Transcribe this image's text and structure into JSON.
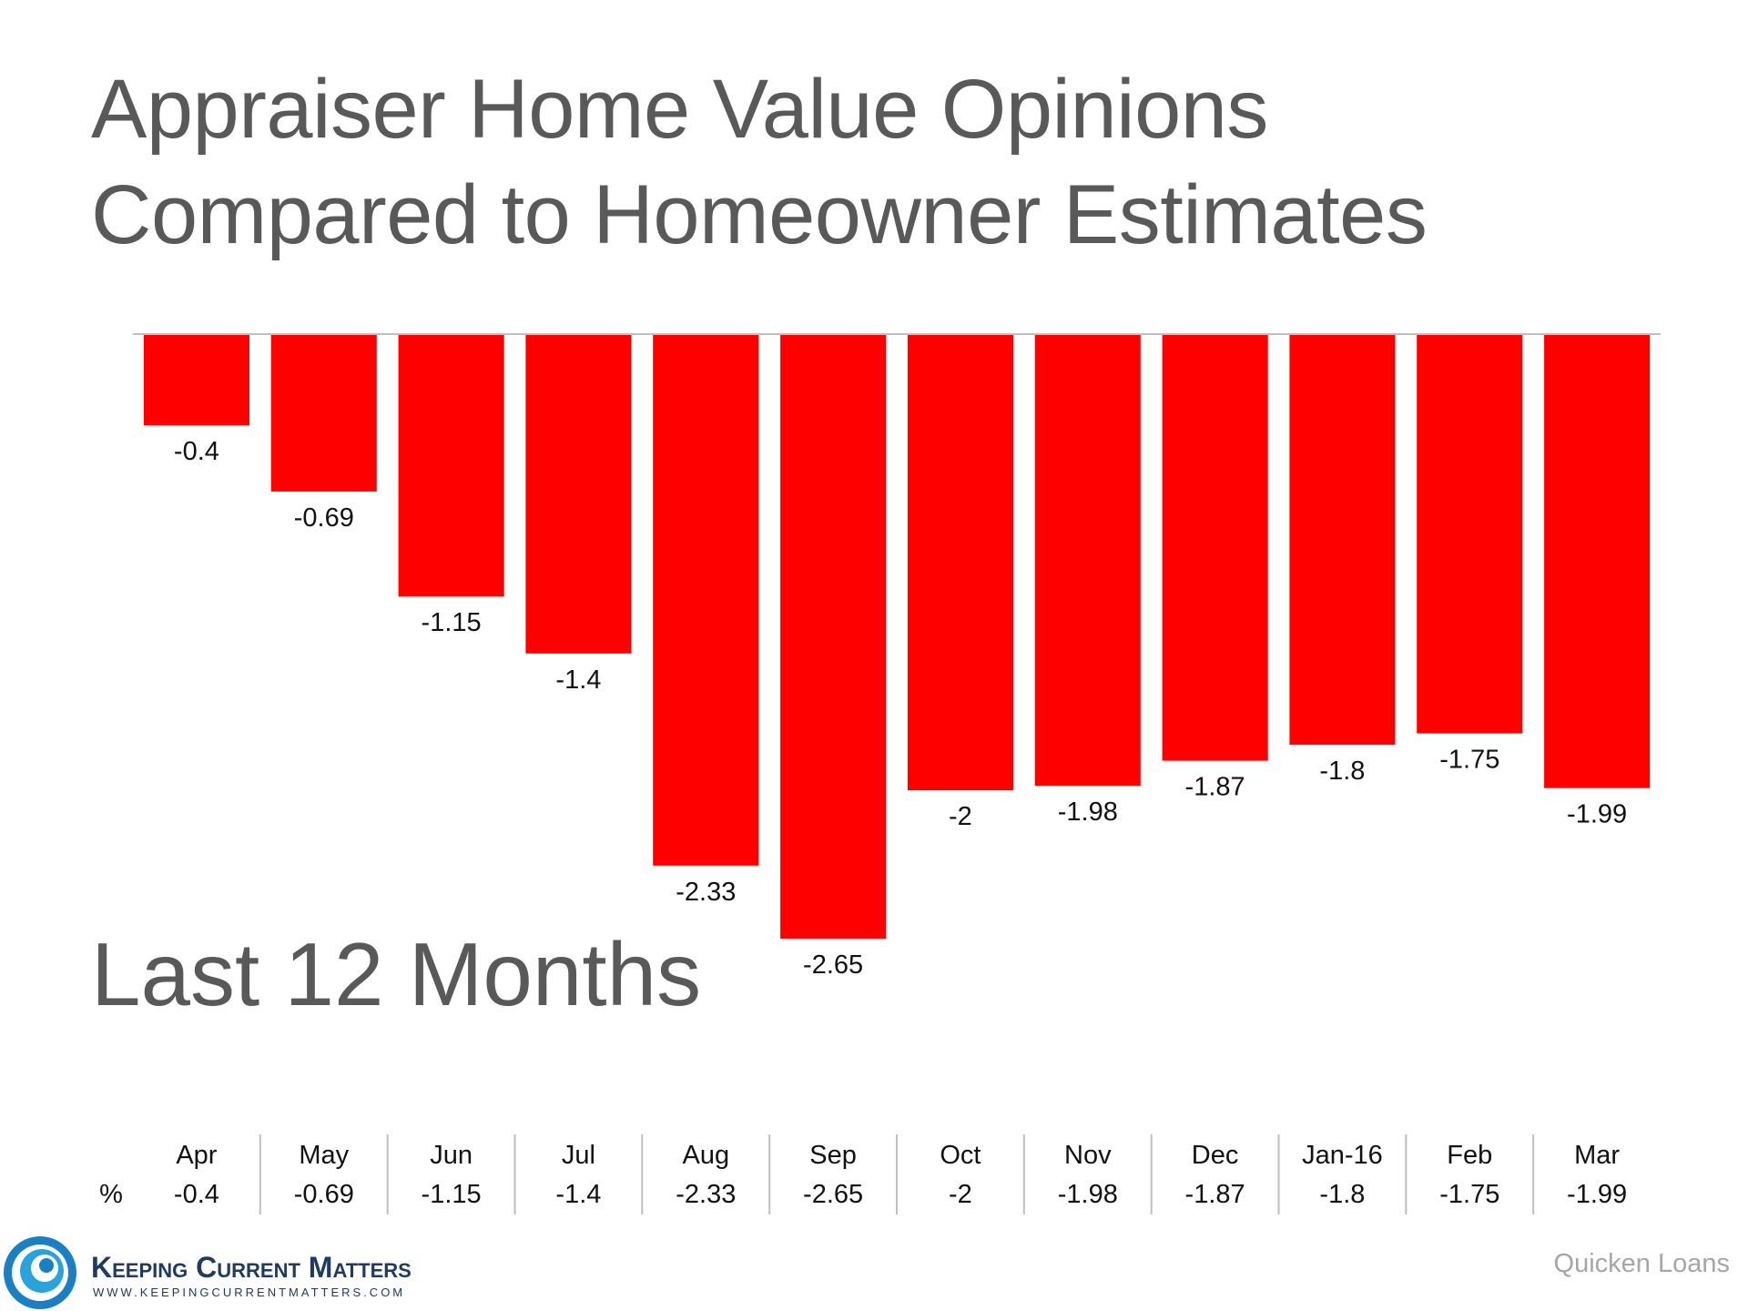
{
  "title_lines": [
    "Appraiser Home Value Opinions",
    "Compared to Homeowner Estimates"
  ],
  "subtitle": "Last 12 Months",
  "colors": {
    "bar": "#ff0000",
    "text": "#595959",
    "axis": "#bfbfbf",
    "brand": "#1f3b63"
  },
  "chart_data": {
    "type": "bar",
    "title": "Appraiser Home Value Opinions Compared to Homeowner Estimates",
    "subtitle": "Last 12 Months",
    "categories": [
      "Apr",
      "May",
      "Jun",
      "Jul",
      "Aug",
      "Sep",
      "Oct",
      "Nov",
      "Dec",
      "Jan-16",
      "Feb",
      "Mar"
    ],
    "values": [
      -0.4,
      -0.69,
      -1.15,
      -1.4,
      -2.33,
      -2.65,
      -2,
      -1.98,
      -1.87,
      -1.8,
      -1.75,
      -1.99
    ],
    "value_labels": [
      "-0.4",
      "-0.69",
      "-1.15",
      "-1.4",
      "-2.33",
      "-2.65",
      "-2",
      "-1.98",
      "-1.87",
      "-1.8",
      "-1.75",
      "-1.99"
    ],
    "ylim": [
      -2.65,
      0
    ],
    "grid": false,
    "data_table": {
      "row_label": "%"
    }
  },
  "logo": {
    "name": "Keeping Current Matters",
    "url": "WWW.KEEPINGCURRENTMATTERS.COM",
    "icon": "swirl-logo-icon"
  },
  "source": "Quicken Loans"
}
